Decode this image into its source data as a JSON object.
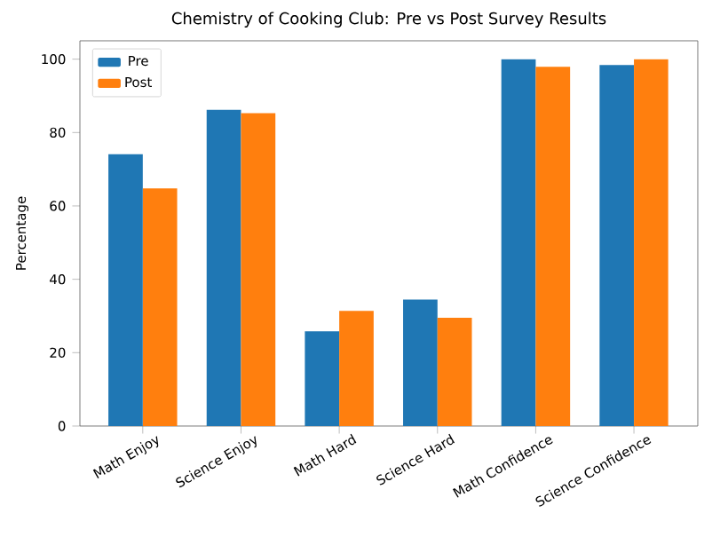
{
  "chart_data": {
    "type": "bar",
    "title": "Chemistry of Cooking Club: Pre vs Post Survey Results",
    "ylabel": "Percentage",
    "categories": [
      "Math Enjoy",
      "Science Enjoy",
      "Math Hard",
      "Science Hard",
      "Math Confidence",
      "Science Confidence"
    ],
    "series": [
      {
        "name": "Pre",
        "color": "#1f77b4",
        "values": [
          74.1,
          86.2,
          25.8,
          34.5,
          100,
          98.4
        ]
      },
      {
        "name": "Post",
        "color": "#ff7f0e",
        "values": [
          64.8,
          85.3,
          31.4,
          29.5,
          97.9,
          100
        ]
      }
    ],
    "ylim": [
      0,
      105
    ],
    "yticks": [
      0,
      20,
      40,
      60,
      80,
      100
    ],
    "legend": "top left",
    "grid": false
  }
}
